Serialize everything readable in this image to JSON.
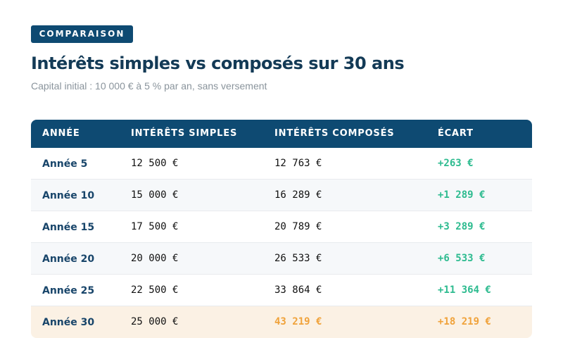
{
  "badge": "COMPARAISON",
  "title": "Intérêts simples vs composés sur 30 ans",
  "subtitle": "Capital initial : 10 000 € à 5 % par an, sans versement",
  "table": {
    "headers": [
      "ANNÉE",
      "INTÉRÊTS SIMPLES",
      "INTÉRÊTS COMPOSÉS",
      "ÉCART"
    ],
    "rows": [
      {
        "year": "Année 5",
        "simple": "12 500 €",
        "compound": "12 763 €",
        "gap": "+263 €"
      },
      {
        "year": "Année 10",
        "simple": "15 000 €",
        "compound": "16 289 €",
        "gap": "+1 289 €"
      },
      {
        "year": "Année 15",
        "simple": "17 500 €",
        "compound": "20 789 €",
        "gap": "+3 289 €"
      },
      {
        "year": "Année 20",
        "simple": "20 000 €",
        "compound": "26 533 €",
        "gap": "+6 533 €"
      },
      {
        "year": "Année 25",
        "simple": "22 500 €",
        "compound": "33 864 €",
        "gap": "+11 364 €"
      },
      {
        "year": "Année 30",
        "simple": "25 000 €",
        "compound": "43 219 €",
        "gap": "+18 219 €"
      }
    ]
  },
  "colors": {
    "header_bg": "#0e4a72",
    "title": "#133a56",
    "gain": "#2dbb8f",
    "highlight": "#f0a23a",
    "highlight_row_bg": "#fbf1e4"
  }
}
